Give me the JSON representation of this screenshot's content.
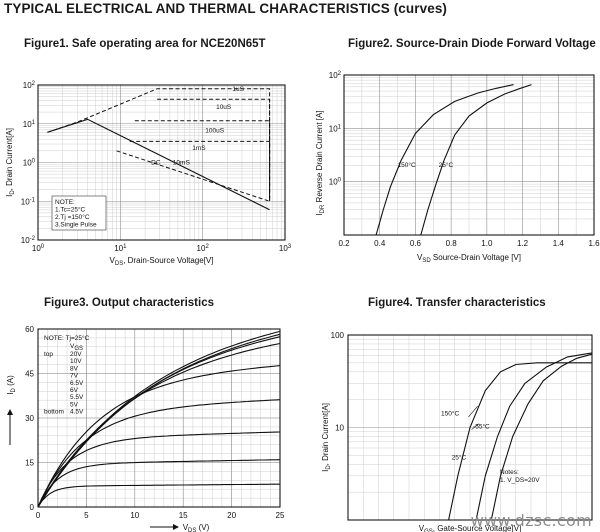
{
  "page": {
    "title": "TYPICAL ELECTRICAL AND THERMAL CHARACTERISTICS (curves)",
    "watermark": "www.dzsc.com",
    "colors": {
      "curve": "#111111",
      "grid_major": "#8f8f8f",
      "grid_minor": "#cfcfcf",
      "watermark": "#8d8d8d"
    }
  },
  "chart_data": [
    {
      "id": "fig1",
      "type": "line",
      "title": "Figure1. Safe operating area for NCE20N65T",
      "xlabel": "V_DS, Drain-Source Voltage[V]",
      "ylabel": "I_D, Drain Current[A]",
      "xscale": "log",
      "yscale": "log",
      "xlim": [
        1,
        1000
      ],
      "ylim": [
        0.01,
        100
      ],
      "xticks": [
        1,
        10,
        100,
        1000
      ],
      "xtick_labels": [
        "10^0",
        "10^1",
        "10^2",
        "10^3"
      ],
      "yticks": [
        0.01,
        0.1,
        1,
        10,
        100
      ],
      "ytick_labels": [
        "10^-2",
        "10^-1",
        "10^0",
        "10^1",
        "10^2"
      ],
      "grid": true,
      "note": [
        "NOTE:",
        "1.Tc=25°C",
        "2.Tj =150°C",
        "3.Single Pulse"
      ],
      "series": [
        {
          "name": "1uS",
          "dashed": true,
          "x": [
            1.3,
            3,
            28,
            650,
            650
          ],
          "y": [
            6,
            11,
            80,
            80,
            0.1
          ]
        },
        {
          "name": "10uS",
          "dashed": true,
          "x": [
            28,
            650,
            650
          ],
          "y": [
            43,
            43,
            0.1
          ]
        },
        {
          "name": "100uS",
          "dashed": true,
          "x": [
            15,
            650,
            650
          ],
          "y": [
            12,
            12,
            0.1
          ]
        },
        {
          "name": "1mS",
          "dashed": true,
          "x": [
            13,
            650,
            650
          ],
          "y": [
            3.5,
            3.5,
            0.1
          ]
        },
        {
          "name": "10mS",
          "dashed": true,
          "x": [
            9,
            650
          ],
          "y": [
            2,
            0.1
          ]
        },
        {
          "name": "DC",
          "dashed": false,
          "x": [
            1.3,
            4,
            650
          ],
          "y": [
            6,
            13,
            0.06
          ]
        }
      ],
      "annotations": [
        {
          "text": "1uS",
          "x": 270,
          "y": 70
        },
        {
          "text": "10uS",
          "x": 180,
          "y": 24
        },
        {
          "text": "100uS",
          "x": 140,
          "y": 6
        },
        {
          "text": "1mS",
          "x": 90,
          "y": 2.1
        },
        {
          "text": "10mS",
          "x": 55,
          "y": 0.9
        },
        {
          "text": "DC",
          "x": 27,
          "y": 0.9
        }
      ]
    },
    {
      "id": "fig2",
      "type": "line",
      "title": "Figure2. Source-Drain Diode Forward Voltage",
      "xlabel": "V_SD Source-Drain Voltage  [V]",
      "ylabel": "I_DR Reverse Drain Current  [A]",
      "xscale": "linear",
      "yscale": "log",
      "xlim": [
        0.2,
        1.6
      ],
      "ylim": [
        0.1,
        100
      ],
      "xticks": [
        0.2,
        0.4,
        0.6,
        0.8,
        1.0,
        1.2,
        1.4,
        1.6
      ],
      "xtick_labels": [
        "0.2",
        "0.4",
        "0.6",
        "0.8",
        "1.0",
        "1.2",
        "1.4",
        "1.6"
      ],
      "yticks": [
        1,
        10,
        100
      ],
      "ytick_labels": [
        "10^0",
        "10^1",
        "10^2"
      ],
      "grid": true,
      "series": [
        {
          "name": "150°C",
          "x": [
            0.38,
            0.42,
            0.46,
            0.52,
            0.6,
            0.7,
            0.82,
            0.95,
            1.05,
            1.15
          ],
          "y": [
            0.1,
            0.3,
            0.8,
            2.5,
            8,
            18,
            32,
            46,
            56,
            66
          ]
        },
        {
          "name": "25°C",
          "x": [
            0.63,
            0.67,
            0.71,
            0.76,
            0.82,
            0.9,
            1.0,
            1.1,
            1.18,
            1.25
          ],
          "y": [
            0.1,
            0.3,
            0.8,
            2.5,
            7.5,
            17,
            30,
            44,
            55,
            66
          ]
        }
      ],
      "annotations": [
        {
          "text": "150°C",
          "x": 0.5,
          "y": 1.9
        },
        {
          "text": "25°C",
          "x": 0.73,
          "y": 1.9
        }
      ]
    },
    {
      "id": "fig3",
      "type": "line",
      "title": "Figure3. Output characteristics",
      "xlabel": "V_DS (V)",
      "ylabel": "I_D (A)",
      "xlim": [
        0,
        25
      ],
      "ylim": [
        0,
        60
      ],
      "xticks": [
        0,
        5,
        10,
        15,
        20,
        25
      ],
      "yticks": [
        0,
        15,
        30,
        45,
        60
      ],
      "grid": true,
      "legend": {
        "title": "NOTE:  Tj=25°C",
        "header": "V_GS",
        "top_label": "top",
        "bottom_label": "bottom",
        "entries": [
          "20V",
          "10V",
          "8V",
          "7V",
          "6.5V",
          "6V",
          "5.5V",
          "5V",
          "4.5V"
        ]
      },
      "series": [
        {
          "name": "20V",
          "isat": 60,
          "tau": 11
        },
        {
          "name": "10V",
          "isat": 59,
          "tau": 11
        },
        {
          "name": "8V",
          "isat": 57.5,
          "tau": 10.5
        },
        {
          "name": "7V",
          "isat": 54,
          "tau": 9.5
        },
        {
          "name": "6.5V",
          "isat": 44,
          "tau": 6
        },
        {
          "name": "6V",
          "isat": 33,
          "tau": 4.5
        },
        {
          "name": "5.5V",
          "isat": 23,
          "tau": 3
        },
        {
          "name": "5V",
          "isat": 14.5,
          "tau": 2
        },
        {
          "name": "4.5V",
          "isat": 7,
          "tau": 1.2
        }
      ]
    },
    {
      "id": "fig4",
      "type": "line",
      "title": "Figure4. Transfer characteristics",
      "xlabel": "V_GS, Gate-Source Voltage[V]",
      "ylabel": "I_D, Drain Current[A]",
      "xlim": [
        0,
        8
      ],
      "ylim": [
        1,
        100
      ],
      "yscale": "log",
      "yticks": [
        10,
        100
      ],
      "ytick_labels": [
        "10",
        "100"
      ],
      "grid": true,
      "notes": [
        "Notes:",
        "1. V_DS=20V"
      ],
      "series": [
        {
          "name": "150°C",
          "x": [
            3.3,
            3.6,
            4.0,
            4.5,
            5.0,
            5.5,
            6.2,
            8.0
          ],
          "y": [
            1,
            3,
            10,
            25,
            40,
            48,
            50,
            50
          ]
        },
        {
          "name": "25°C",
          "x": [
            4.2,
            4.5,
            4.9,
            5.3,
            5.8,
            6.5,
            7.2,
            8.0
          ],
          "y": [
            1,
            3,
            8,
            17,
            30,
            45,
            58,
            64
          ]
        },
        {
          "name": "-55°C",
          "x": [
            4.7,
            5.0,
            5.4,
            5.9,
            6.4,
            7.0,
            7.5,
            8.0
          ],
          "y": [
            1,
            3,
            8,
            18,
            32,
            46,
            56,
            62
          ]
        }
      ],
      "annotations": [
        {
          "text": "150°C",
          "x": 3.05,
          "y": 13.5
        },
        {
          "text": "-55°C",
          "x": 4.1,
          "y": 9.8
        },
        {
          "text": "25°C",
          "x": 3.4,
          "y": 4.5
        }
      ]
    }
  ]
}
